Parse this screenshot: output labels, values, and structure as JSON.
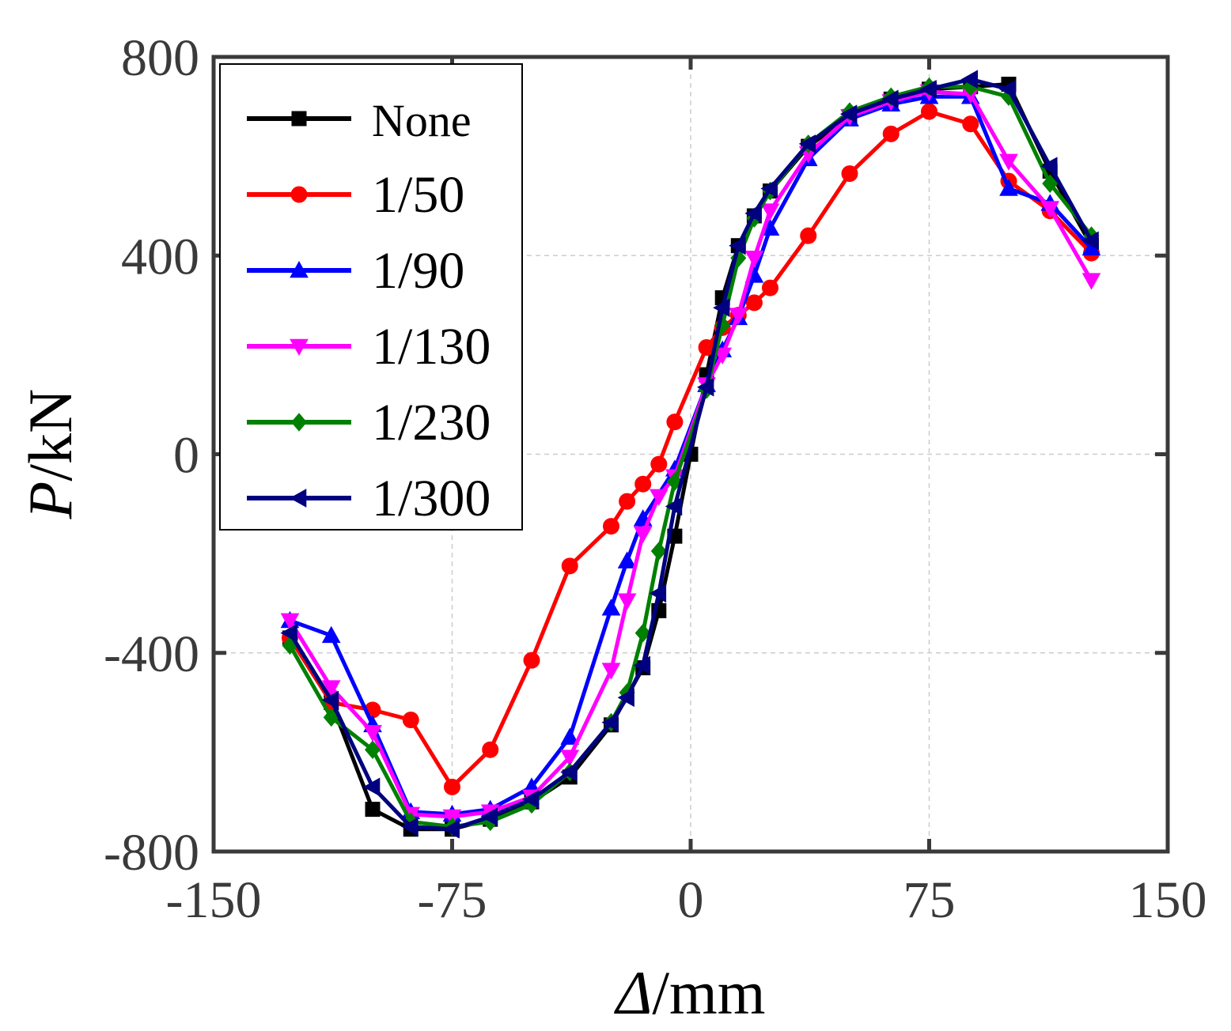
{
  "chart_data": {
    "type": "line",
    "title": "",
    "xlabel_symbol": "Δ",
    "xlabel_unit": "/mm",
    "ylabel_symbol": "P",
    "ylabel_unit": "/kN",
    "xlim": [
      -150,
      150
    ],
    "ylim": [
      -800,
      800
    ],
    "xticks": [
      -150,
      -75,
      0,
      75,
      150
    ],
    "yticks": [
      -800,
      -400,
      0,
      400,
      800
    ],
    "grid": true,
    "legend_position": "top-left",
    "series": [
      {
        "name": "None",
        "color": "#000000",
        "marker": "square",
        "x": [
          -126,
          -113,
          -100,
          -88,
          -75,
          -63,
          -50,
          -38,
          -25,
          -15,
          -10,
          -5,
          0,
          5,
          10,
          15,
          20,
          25,
          37,
          50,
          63,
          75,
          88,
          100,
          113,
          126
        ],
        "y": [
          -370,
          -500,
          -715,
          -755,
          -755,
          -735,
          -700,
          -650,
          -545,
          -430,
          -315,
          -165,
          0,
          160,
          315,
          420,
          480,
          530,
          620,
          680,
          715,
          735,
          740,
          745,
          570,
          420
        ]
      },
      {
        "name": "1/50",
        "color": "#ff0000",
        "marker": "circle",
        "x": [
          -126,
          -113,
          -100,
          -88,
          -75,
          -63,
          -50,
          -38,
          -25,
          -20,
          -15,
          -10,
          -5,
          5,
          10,
          15,
          20,
          25,
          37,
          50,
          63,
          75,
          88,
          100,
          113,
          126
        ],
        "y": [
          -370,
          -500,
          -515,
          -535,
          -670,
          -595,
          -415,
          -225,
          -145,
          -95,
          -60,
          -20,
          65,
          215,
          255,
          280,
          305,
          335,
          440,
          565,
          645,
          690,
          665,
          550,
          490,
          405
        ]
      },
      {
        "name": "1/90",
        "color": "#0000ff",
        "marker": "triangle-up",
        "x": [
          -126,
          -113,
          -100,
          -88,
          -75,
          -63,
          -50,
          -38,
          -25,
          -20,
          -15,
          -5,
          5,
          10,
          15,
          20,
          25,
          37,
          50,
          63,
          75,
          88,
          100,
          113,
          126
        ],
        "y": [
          -335,
          -365,
          -545,
          -720,
          -725,
          -715,
          -670,
          -570,
          -310,
          -215,
          -130,
          -30,
          140,
          210,
          275,
          360,
          455,
          595,
          675,
          705,
          720,
          720,
          535,
          505,
          415
        ]
      },
      {
        "name": "1/130",
        "color": "#ff00ff",
        "marker": "triangle-down",
        "x": [
          -126,
          -113,
          -100,
          -88,
          -75,
          -63,
          -50,
          -38,
          -25,
          -20,
          -15,
          -10,
          -5,
          5,
          10,
          15,
          20,
          25,
          37,
          50,
          63,
          75,
          88,
          100,
          113,
          126
        ],
        "y": [
          -335,
          -470,
          -560,
          -725,
          -730,
          -720,
          -690,
          -610,
          -435,
          -295,
          -160,
          -85,
          -45,
          140,
          200,
          280,
          395,
          490,
          605,
          680,
          710,
          730,
          725,
          590,
          495,
          350
        ]
      },
      {
        "name": "1/230",
        "color": "#008000",
        "marker": "diamond",
        "x": [
          -126,
          -113,
          -100,
          -88,
          -75,
          -63,
          -50,
          -38,
          -25,
          -20,
          -15,
          -10,
          -5,
          5,
          10,
          15,
          20,
          25,
          37,
          50,
          63,
          75,
          88,
          100,
          113,
          126
        ],
        "y": [
          -385,
          -530,
          -595,
          -740,
          -750,
          -740,
          -705,
          -640,
          -540,
          -480,
          -360,
          -195,
          -55,
          130,
          260,
          395,
          475,
          530,
          625,
          690,
          720,
          740,
          740,
          720,
          545,
          440
        ]
      },
      {
        "name": "1/300",
        "color": "#000080",
        "marker": "triangle-left",
        "x": [
          -126,
          -113,
          -100,
          -88,
          -75,
          -63,
          -50,
          -38,
          -25,
          -20,
          -15,
          -10,
          -5,
          5,
          10,
          15,
          20,
          25,
          37,
          50,
          63,
          75,
          88,
          100,
          113,
          126
        ],
        "y": [
          -360,
          -495,
          -670,
          -750,
          -755,
          -730,
          -695,
          -640,
          -540,
          -490,
          -425,
          -280,
          -105,
          135,
          295,
          420,
          485,
          535,
          625,
          685,
          715,
          735,
          755,
          735,
          580,
          430
        ]
      }
    ]
  }
}
